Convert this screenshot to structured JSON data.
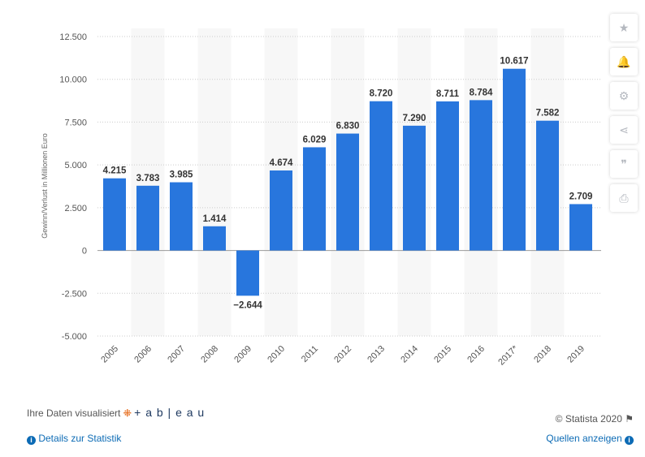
{
  "chart_data": {
    "type": "bar",
    "categories": [
      "2005",
      "2006",
      "2007",
      "2008",
      "2009",
      "2010",
      "2011",
      "2012",
      "2013",
      "2014",
      "2015",
      "2016",
      "2017*",
      "2018",
      "2019"
    ],
    "values": [
      4215,
      3783,
      3985,
      1414,
      -2644,
      4674,
      6029,
      6830,
      8720,
      7290,
      8711,
      8784,
      10617,
      7582,
      2709
    ],
    "data_labels": [
      "4.215",
      "3.783",
      "3.985",
      "1.414",
      "−2.644",
      "4.674",
      "6.029",
      "6.830",
      "8.720",
      "7.290",
      "8.711",
      "8.784",
      "10.617",
      "7.582",
      "2.709"
    ],
    "ylabel": "Gewinn/Verlust in Millionen Euro",
    "ylim": [
      -5000,
      12500
    ],
    "yticks": [
      -5000,
      -2500,
      0,
      2500,
      5000,
      7500,
      10000,
      12500
    ],
    "ytick_labels": [
      "-5.000",
      "-2.500",
      "0",
      "2.500",
      "5.000",
      "7.500",
      "10.000",
      "12.500"
    ],
    "bar_color": "#2876dd",
    "grid": true
  },
  "sidebar": {
    "icons": [
      "star-icon",
      "bell-icon",
      "gear-icon",
      "share-icon",
      "quote-icon",
      "print-icon"
    ],
    "glyphs": [
      "★",
      "🔔",
      "⚙",
      "⋖",
      "❞",
      "⎙"
    ]
  },
  "footer": {
    "tableau_text": "Ihre Daten visualisiert",
    "tableau_logo": "+ a b | e a u",
    "copyright": "© Statista 2020",
    "details": "Details zur Statistik",
    "sources": "Quellen anzeigen",
    "info": "i"
  }
}
